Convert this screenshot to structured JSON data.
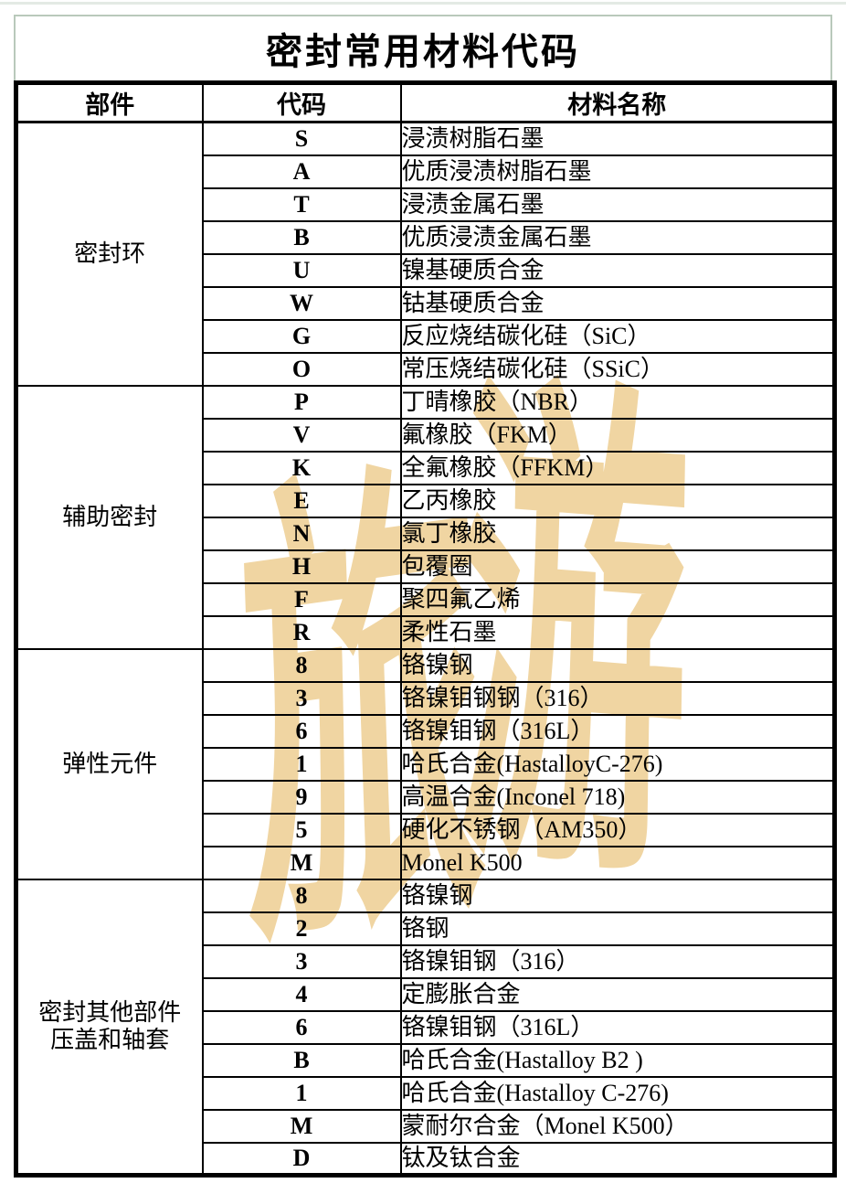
{
  "page": {
    "title": "密封常用材料代码"
  },
  "table": {
    "headers": [
      "部件",
      "代码",
      "材料名称"
    ],
    "sections": [
      {
        "component_lines": [
          "密封环"
        ],
        "rows": [
          {
            "code": "S",
            "material": "浸渍树脂石墨"
          },
          {
            "code": "A",
            "material": "优质浸渍树脂石墨"
          },
          {
            "code": "T",
            "material": "浸渍金属石墨"
          },
          {
            "code": "B",
            "material": "优质浸渍金属石墨"
          },
          {
            "code": "U",
            "material": "镍基硬质合金"
          },
          {
            "code": "W",
            "material": "钴基硬质合金"
          },
          {
            "code": "G",
            "material": "反应烧结碳化硅（SiC）"
          },
          {
            "code": "O",
            "material": "常压烧结碳化硅（SSiC）"
          }
        ]
      },
      {
        "component_lines": [
          "辅助密封"
        ],
        "rows": [
          {
            "code": "P",
            "material": "丁晴橡胶（NBR）"
          },
          {
            "code": "V",
            "material": "氟橡胶（FKM）"
          },
          {
            "code": "K",
            "material": "全氟橡胶（FFKM）"
          },
          {
            "code": "E",
            "material": "乙丙橡胶"
          },
          {
            "code": "N",
            "material": "氯丁橡胶"
          },
          {
            "code": "H",
            "material": "包覆圈"
          },
          {
            "code": "F",
            "material": "聚四氟乙烯"
          },
          {
            "code": "R",
            "material": "柔性石墨"
          }
        ]
      },
      {
        "component_lines": [
          "弹性元件"
        ],
        "rows": [
          {
            "code": "8",
            "material": "铬镍钢"
          },
          {
            "code": "3",
            "material": "铬镍钼钢钢（316）"
          },
          {
            "code": "6",
            "material": "铬镍钼钢（316L）"
          },
          {
            "code": "1",
            "material": "哈氏合金(HastalloyC-276)"
          },
          {
            "code": "9",
            "material": "高温合金(Inconel 718)"
          },
          {
            "code": "5",
            "material": "硬化不锈钢（AM350）"
          },
          {
            "code": "M",
            "material": "Monel K500"
          }
        ]
      },
      {
        "component_lines": [
          "密封其他部件",
          "压盖和轴套"
        ],
        "rows": [
          {
            "code": "8",
            "material": "铬镍钢"
          },
          {
            "code": "2",
            "material": "铬钢"
          },
          {
            "code": "3",
            "material": "铬镍钼钢（316）"
          },
          {
            "code": "4",
            "material": "定膨胀合金"
          },
          {
            "code": "6",
            "material": "铬镍钼钢（316L）"
          },
          {
            "code": "B",
            "material": "哈氏合金(Hastalloy B2 )"
          },
          {
            "code": "1",
            "material": "哈氏合金(Hastalloy C-276)"
          },
          {
            "code": "M",
            "material": "蒙耐尔合金（Monel K500）"
          },
          {
            "code": "D",
            "material": "钛及钛合金"
          }
        ]
      }
    ]
  },
  "watermark": {
    "chars": [
      "旅",
      "游"
    ],
    "color": "#f0d5a2"
  },
  "colors": {
    "title_border_green": "#b9c9bb",
    "top_strip_green": "#e3eae4",
    "table_border": "#000000",
    "watermark_tan": "#f0d5a2"
  }
}
